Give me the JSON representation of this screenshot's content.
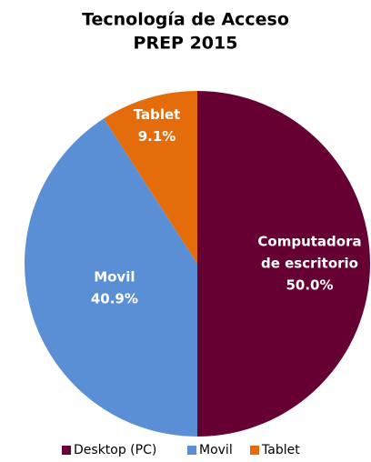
{
  "chart_data": {
    "type": "pie",
    "title": "Tecnología de Acceso",
    "subtitle": "PREP 2015",
    "categories": [
      "Desktop (PC)",
      "Movil",
      "Tablet"
    ],
    "labels": [
      [
        "Computadora",
        "de escritorio"
      ],
      [
        "Movil"
      ],
      [
        "Tablet"
      ]
    ],
    "values": [
      50.0,
      40.9,
      9.1
    ],
    "value_labels": [
      "50.0%",
      "40.9%",
      "9.1%"
    ],
    "colors": [
      "#660033",
      "#5b8fd5",
      "#e46c0a"
    ],
    "legend": "bottom"
  }
}
